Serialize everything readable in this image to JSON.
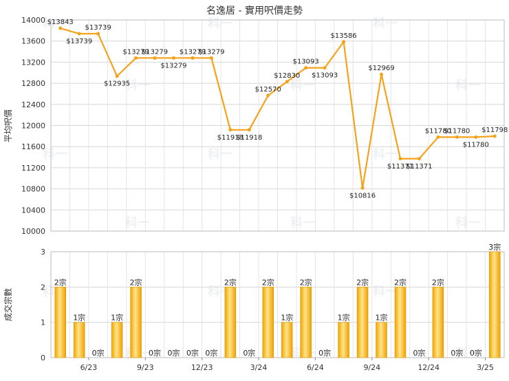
{
  "chart_data": [
    {
      "type": "line",
      "title": "名逸居 - 實用呎價走勢",
      "ylabel": "平均呎價",
      "ylim": [
        10000,
        14000
      ],
      "yticks": [
        "10000",
        "10400",
        "10800",
        "11200",
        "11600",
        "12000",
        "12400",
        "12800",
        "13200",
        "13600",
        "14000"
      ],
      "grid": true,
      "color": "#f5a21b",
      "watermark": "科一",
      "values": [
        13843,
        13739,
        13739,
        12935,
        13279,
        13279,
        13279,
        13279,
        13279,
        11918,
        11918,
        12570,
        12830,
        13093,
        13093,
        13586,
        10816,
        12969,
        11371,
        11371,
        11780,
        11780,
        11780,
        11798
      ],
      "labels": [
        "$13843",
        "$13739",
        "$13739",
        "$12935",
        "$13279",
        "$13279",
        "$13279",
        "$13279",
        "$13279",
        "$11918",
        "$11918",
        "$12570",
        "$12830",
        "$13093",
        "$13093",
        "$13586",
        "$10816",
        "$12969",
        "$11371",
        "$11371",
        "$11780",
        "$11780",
        "$11780",
        "$11798"
      ]
    },
    {
      "type": "bar",
      "ylabel": "成交宗數",
      "ylim": [
        0,
        3
      ],
      "yticks": [
        "0",
        "1",
        "2",
        "3"
      ],
      "categories": [
        "6/23",
        "9/23",
        "12/23",
        "3/24",
        "6/24",
        "9/24",
        "12/24",
        "3/25"
      ],
      "values": [
        2,
        1,
        0,
        1,
        2,
        0,
        0,
        0,
        0,
        2,
        0,
        2,
        1,
        2,
        0,
        1,
        2,
        1,
        2,
        0,
        2,
        0,
        0,
        3
      ],
      "labels": [
        "2宗",
        "1宗",
        "0宗",
        "1宗",
        "2宗",
        "0宗",
        "0宗",
        "0宗",
        "0宗",
        "2宗",
        "0宗",
        "2宗",
        "1宗",
        "2宗",
        "0宗",
        "1宗",
        "2宗",
        "1宗",
        "2宗",
        "0宗",
        "2宗",
        "0宗",
        "0宗",
        "3宗"
      ]
    }
  ]
}
